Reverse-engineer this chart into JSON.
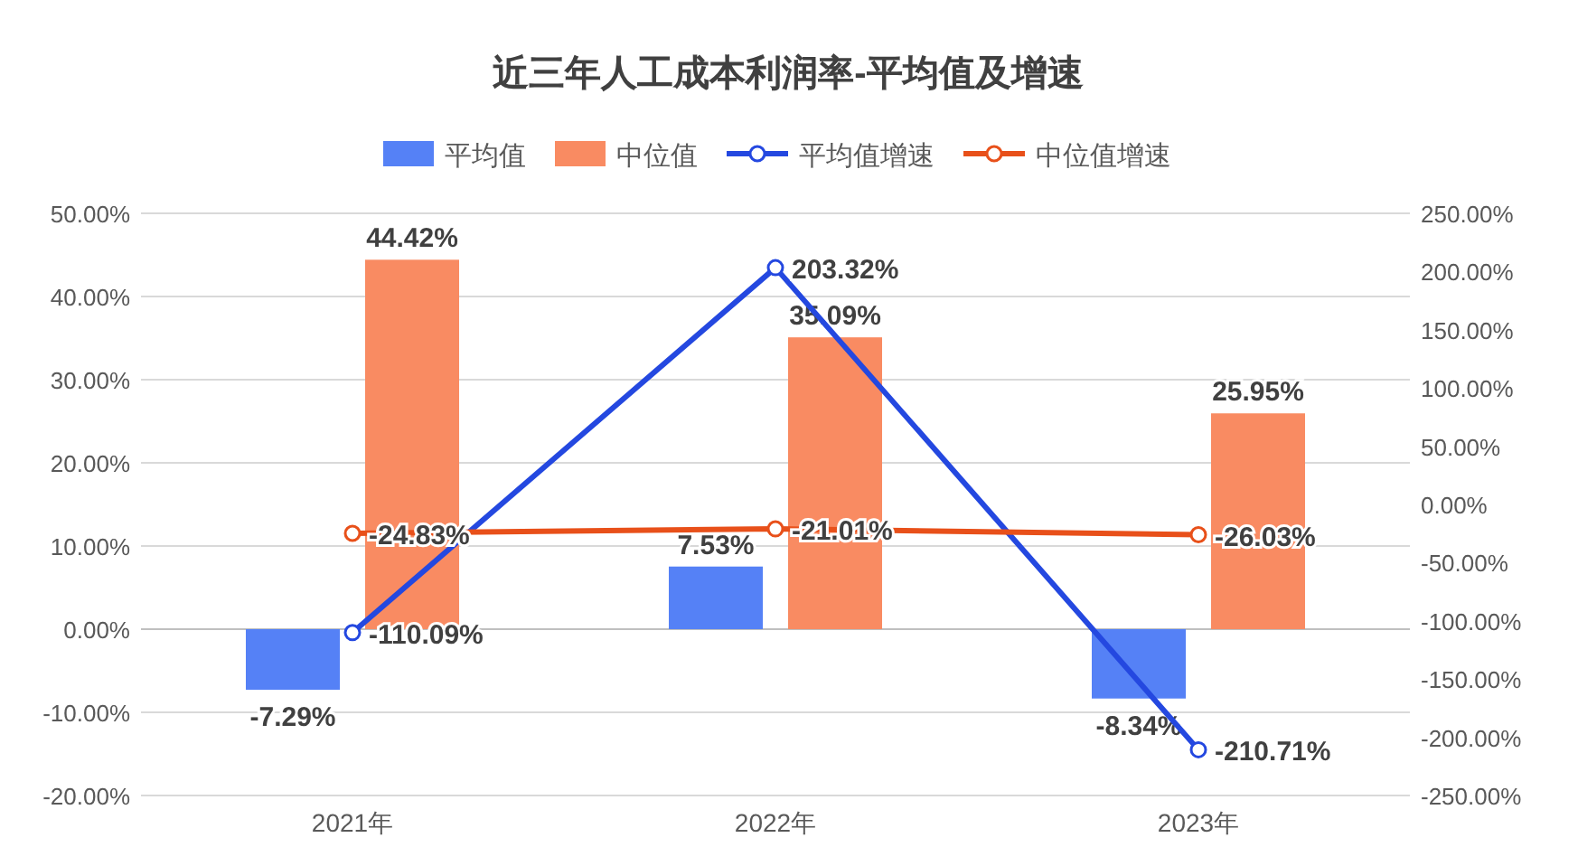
{
  "chart_data": {
    "type": "bar",
    "title": "近三年人工成本利润率-平均值及增速",
    "categories": [
      "2021年",
      "2022年",
      "2023年"
    ],
    "series": [
      {
        "name": "平均值",
        "type": "bar",
        "color": "#5581f6",
        "values": [
          -7.29,
          7.53,
          -8.34
        ],
        "value_labels": [
          "-7.29%",
          "7.53%",
          "-8.34%"
        ]
      },
      {
        "name": "中位值",
        "type": "bar",
        "color": "#f98b62",
        "values": [
          44.42,
          35.09,
          25.95
        ],
        "value_labels": [
          "44.42%",
          "35.09%",
          "25.95%"
        ]
      },
      {
        "name": "平均值增速",
        "type": "line",
        "axis": "y2",
        "color": "#2448e0",
        "marker": "circle",
        "values": [
          -110.09,
          203.32,
          -210.71
        ],
        "value_labels": [
          "-110.09%",
          "203.32%",
          "-210.71%"
        ]
      },
      {
        "name": "中位值增速",
        "type": "line",
        "axis": "y2",
        "color": "#e8501a",
        "marker": "circle",
        "values": [
          -24.83,
          -21.01,
          -26.03
        ],
        "value_labels": [
          "-24.83%",
          "-21.01%",
          "-26.03%"
        ]
      }
    ],
    "ylim": [
      -20,
      50
    ],
    "yticks": [
      {
        "value": -20,
        "label": "-20.00%"
      },
      {
        "value": -10,
        "label": "-10.00%"
      },
      {
        "value": 0,
        "label": "0.00%"
      },
      {
        "value": 10,
        "label": "10.00%"
      },
      {
        "value": 20,
        "label": "20.00%"
      },
      {
        "value": 30,
        "label": "30.00%"
      },
      {
        "value": 40,
        "label": "40.00%"
      },
      {
        "value": 50,
        "label": "50.00%"
      }
    ],
    "y2lim": [
      -250,
      250
    ],
    "y2ticks": [
      {
        "value": -250,
        "label": "-250.00%"
      },
      {
        "value": -200,
        "label": "-200.00%"
      },
      {
        "value": -150,
        "label": "-150.00%"
      },
      {
        "value": -100,
        "label": "-100.00%"
      },
      {
        "value": -50,
        "label": "-50.00%"
      },
      {
        "value": 0,
        "label": "0.00%"
      },
      {
        "value": 50,
        "label": "50.00%"
      },
      {
        "value": 100,
        "label": "100.00%"
      },
      {
        "value": 150,
        "label": "150.00%"
      },
      {
        "value": 200,
        "label": "200.00%"
      },
      {
        "value": 250,
        "label": "250.00%"
      }
    ],
    "grid": "y",
    "legend": "top"
  }
}
